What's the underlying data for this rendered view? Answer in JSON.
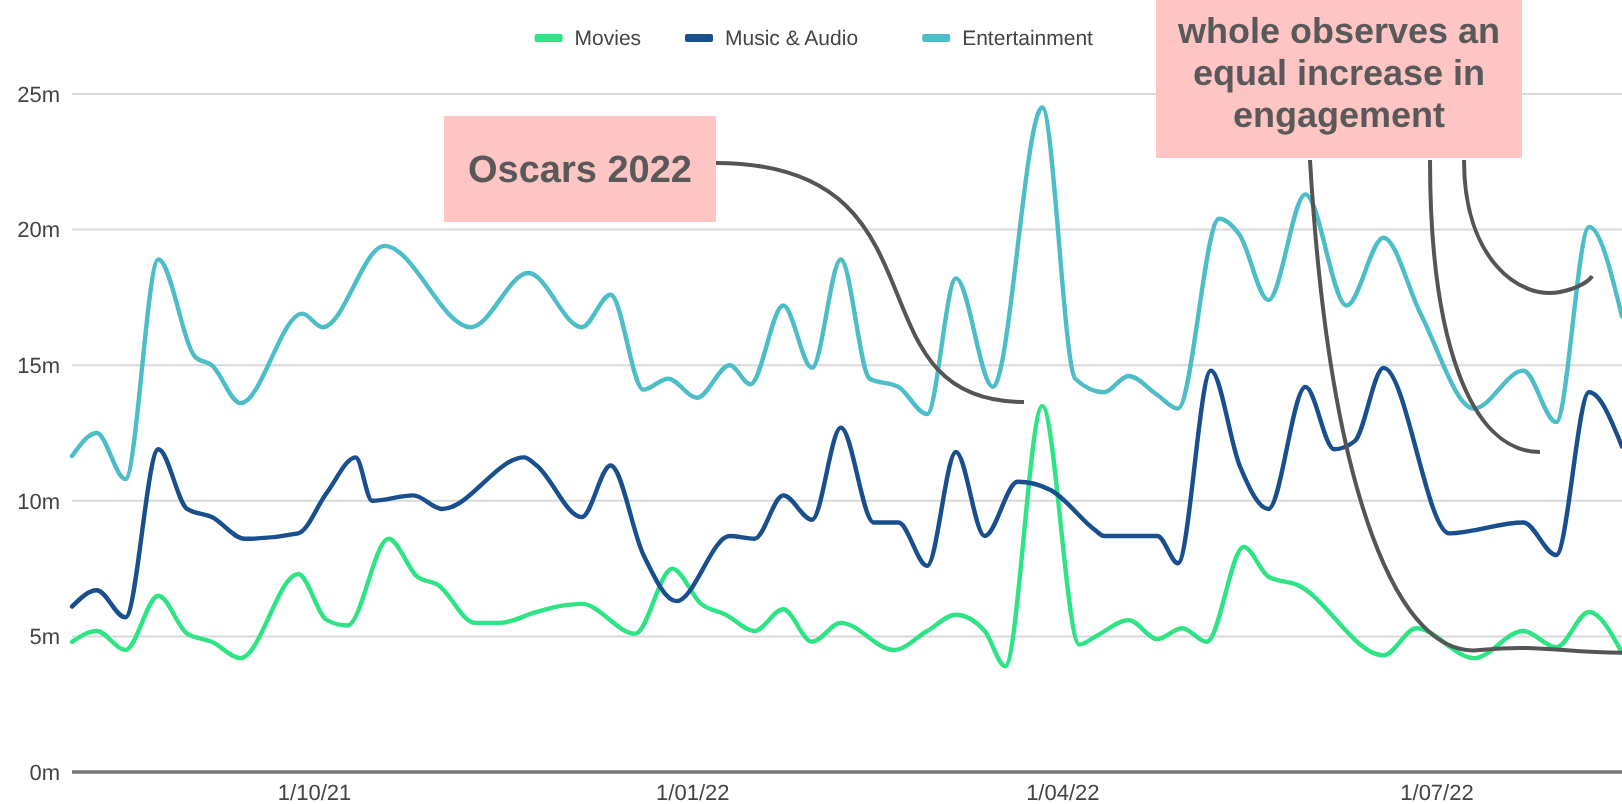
{
  "chart_data": {
    "type": "line",
    "legend": "top",
    "grid": "y",
    "marker": "none",
    "line_style": "solid",
    "xlim": [
      "2021-08-03",
      "2022-08-15"
    ],
    "xticks": [
      {
        "value": "2021-10-01",
        "label": "1/10/21"
      },
      {
        "value": "2022-01-01",
        "label": "1/01/22"
      },
      {
        "value": "2022-04-01",
        "label": "1/04/22"
      },
      {
        "value": "2022-07-01",
        "label": "1/07/22"
      }
    ],
    "ylim": [
      0,
      25
    ],
    "yticks": [
      {
        "value": 0,
        "label": "0m"
      },
      {
        "value": 5,
        "label": "5m"
      },
      {
        "value": 10,
        "label": "10m"
      },
      {
        "value": 15,
        "label": "15m"
      },
      {
        "value": 20,
        "label": "20m"
      },
      {
        "value": 25,
        "label": "25m"
      }
    ],
    "annotations": [
      "Oscars 2022",
      {
        "text": "whole observes an equal increase in engagement",
        "x": "2022-08-15",
        "y": 4.4
      }
    ],
    "series": [
      {
        "name": "Movies",
        "color": "#2ee485",
        "x": [
          "2021-08-03",
          "2021-08-09",
          "2021-08-16",
          "2021-08-24",
          "2021-08-31",
          "2021-09-06",
          "2021-09-13",
          "2021-09-27",
          "2021-10-04",
          "2021-10-09",
          "2021-10-19",
          "2021-10-26",
          "2021-10-31",
          "2021-11-09",
          "2021-11-15",
          "2021-11-24",
          "2021-11-29",
          "2021-12-05",
          "2021-12-18",
          "2021-12-27",
          "2022-01-03",
          "2022-01-09",
          "2022-01-16",
          "2022-01-23",
          "2022-01-30",
          "2022-02-06",
          "2022-02-19",
          "2022-02-27",
          "2022-03-06",
          "2022-03-13",
          "2022-03-18",
          "2022-03-27",
          "2022-04-05",
          "2022-04-09",
          "2022-04-17",
          "2022-04-24",
          "2022-04-30",
          "2022-05-06",
          "2022-05-15",
          "2022-05-21",
          "2022-05-28",
          "2022-06-18",
          "2022-06-26",
          "2022-07-10",
          "2022-07-22",
          "2022-07-30",
          "2022-08-07",
          "2022-08-15"
        ],
        "values": [
          4.8,
          5.2,
          4.5,
          6.5,
          5.1,
          4.8,
          4.2,
          7.3,
          5.6,
          5.4,
          8.6,
          7.2,
          6.9,
          5.5,
          5.5,
          5.9,
          6.1,
          6.2,
          5.1,
          7.5,
          6.2,
          5.8,
          5.2,
          6.0,
          4.8,
          5.5,
          4.5,
          5.2,
          5.8,
          5.2,
          3.9,
          13.5,
          4.7,
          5.0,
          5.6,
          4.9,
          5.3,
          4.8,
          8.3,
          7.2,
          6.9,
          4.3,
          5.3,
          4.2,
          5.2,
          4.6,
          5.9,
          4.4
        ]
      },
      {
        "name": "Music & Audio",
        "color": "#1a4f8e",
        "x": [
          "2021-08-03",
          "2021-08-09",
          "2021-08-16",
          "2021-08-24",
          "2021-08-31",
          "2021-09-06",
          "2021-09-14",
          "2021-09-27",
          "2021-10-04",
          "2021-10-11",
          "2021-10-15",
          "2021-10-25",
          "2021-11-01",
          "2021-11-21",
          "2021-11-24",
          "2021-12-05",
          "2021-12-12",
          "2021-12-20",
          "2021-12-28",
          "2022-01-10",
          "2022-01-16",
          "2022-01-23",
          "2022-01-30",
          "2022-02-06",
          "2022-02-14",
          "2022-02-20",
          "2022-02-27",
          "2022-03-06",
          "2022-03-13",
          "2022-03-21",
          "2022-03-29",
          "2022-04-09",
          "2022-04-11",
          "2022-04-24",
          "2022-04-29",
          "2022-05-07",
          "2022-05-14",
          "2022-05-21",
          "2022-05-30",
          "2022-06-06",
          "2022-06-11",
          "2022-06-18",
          "2022-07-04",
          "2022-07-22",
          "2022-07-30",
          "2022-08-07",
          "2022-08-15"
        ],
        "values": [
          6.1,
          6.7,
          5.7,
          11.9,
          9.7,
          9.4,
          8.6,
          8.8,
          10.3,
          11.6,
          10.0,
          10.2,
          9.7,
          11.6,
          11.3,
          9.4,
          11.3,
          8.0,
          6.3,
          8.7,
          8.6,
          10.2,
          9.3,
          12.7,
          9.2,
          9.2,
          7.6,
          11.8,
          8.7,
          10.7,
          10.4,
          8.9,
          8.7,
          8.7,
          7.7,
          14.8,
          11.3,
          9.7,
          14.2,
          11.9,
          12.2,
          14.9,
          8.8,
          9.2,
          8.0,
          14.0,
          12.0
        ]
      },
      {
        "name": "Entertainment",
        "color": "#4dbdc7",
        "x": [
          "2021-08-03",
          "2021-08-09",
          "2021-08-16",
          "2021-08-24",
          "2021-09-02",
          "2021-09-06",
          "2021-09-13",
          "2021-09-28",
          "2021-10-03",
          "2021-10-18",
          "2021-11-08",
          "2021-11-22",
          "2021-12-05",
          "2021-12-12",
          "2021-12-20",
          "2021-12-26",
          "2022-01-02",
          "2022-01-10",
          "2022-01-15",
          "2022-01-23",
          "2022-01-30",
          "2022-02-06",
          "2022-02-13",
          "2022-02-20",
          "2022-02-27",
          "2022-03-06",
          "2022-03-15",
          "2022-03-27",
          "2022-04-04",
          "2022-04-11",
          "2022-04-17",
          "2022-04-24",
          "2022-04-29",
          "2022-05-09",
          "2022-05-14",
          "2022-05-21",
          "2022-05-30",
          "2022-06-09",
          "2022-06-18",
          "2022-06-27",
          "2022-07-10",
          "2022-07-22",
          "2022-07-30",
          "2022-08-07",
          "2022-08-15"
        ],
        "values": [
          11.65,
          12.5,
          10.8,
          18.9,
          15.3,
          15.0,
          13.6,
          16.9,
          16.4,
          19.4,
          16.4,
          18.4,
          16.4,
          17.6,
          14.1,
          14.5,
          13.8,
          15.0,
          14.3,
          17.2,
          14.9,
          18.9,
          14.5,
          14.2,
          13.2,
          18.2,
          14.2,
          24.5,
          14.5,
          14.0,
          14.6,
          13.9,
          13.4,
          20.4,
          19.8,
          17.4,
          21.3,
          17.2,
          19.7,
          16.9,
          13.4,
          14.8,
          12.9,
          20.1,
          16.8
        ]
      }
    ]
  }
}
